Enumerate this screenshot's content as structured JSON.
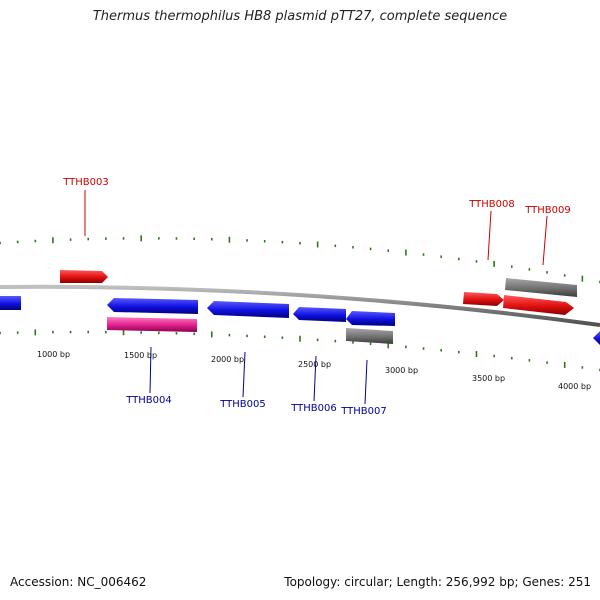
{
  "title": "Thermus thermophilus HB8 plasmid pTT27, complete sequence",
  "footer": {
    "accession": "Accession: NC_006462",
    "summary": "Topology: circular; Length: 256,992 bp; Genes: 251"
  },
  "colors": {
    "forward_gene": "#e01010",
    "reverse_gene": "#1010e0",
    "pink_gene": "#e0208c",
    "gray_gene": "#707070",
    "backbone": "#808080",
    "ticks": "#2a7a1a",
    "label_red": "#cc0000",
    "label_blue": "#000099"
  },
  "scale_labels": [
    "1000 bp",
    "1500 bp",
    "2000 bp",
    "2500 bp",
    "3000 bp",
    "3500 bp",
    "4000 bp"
  ],
  "gene_labels": [
    "TTHB003",
    "TTHB004",
    "TTHB005",
    "TTHB006",
    "TTHB007",
    "TTHB008",
    "TTHB009"
  ]
}
